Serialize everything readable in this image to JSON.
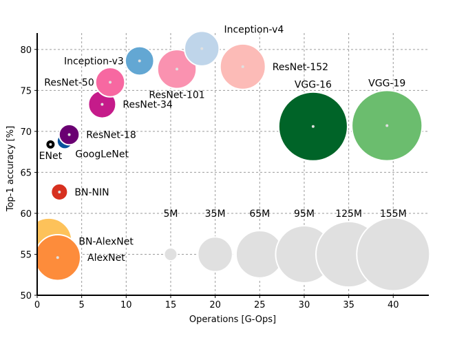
{
  "chart_data": {
    "type": "scatter",
    "subtype": "bubble",
    "title": "",
    "xlabel": "Operations [G-Ops]",
    "ylabel": "Top-1 accuracy [%]",
    "xlim": [
      0,
      44
    ],
    "ylim": [
      50,
      82
    ],
    "xticks": [
      0,
      5,
      10,
      15,
      20,
      25,
      30,
      35,
      40
    ],
    "yticks": [
      50,
      55,
      60,
      65,
      70,
      75,
      80
    ],
    "grid": true,
    "size_encoding": "parameters (millions)",
    "points": [
      {
        "name": "BN-AlexNet",
        "ops": 1.3,
        "accuracy": 56.6,
        "params_m": 62,
        "color": "#fdc25a",
        "label_pos": "right"
      },
      {
        "name": "AlexNet",
        "ops": 2.3,
        "accuracy": 54.6,
        "params_m": 61,
        "color": "#fd8c3b",
        "label_pos": "right"
      },
      {
        "name": "BN-NIN",
        "ops": 2.5,
        "accuracy": 62.6,
        "params_m": 8,
        "color": "#d7301f",
        "label_pos": "right"
      },
      {
        "name": "ENet",
        "ops": 1.5,
        "accuracy": 68.4,
        "params_m": 0.4,
        "color": "#000000",
        "label_pos": "below"
      },
      {
        "name": "GoogLeNet",
        "ops": 3.1,
        "accuracy": 68.8,
        "params_m": 7,
        "color": "#08519c",
        "label_pos": "below-right"
      },
      {
        "name": "ResNet-18",
        "ops": 3.6,
        "accuracy": 69.6,
        "params_m": 12,
        "color": "#6a0072",
        "label_pos": "right"
      },
      {
        "name": "ResNet-34",
        "ops": 7.3,
        "accuracy": 73.3,
        "params_m": 22,
        "color": "#c51b8a",
        "label_pos": "right"
      },
      {
        "name": "ResNet-50",
        "ops": 8.2,
        "accuracy": 76.0,
        "params_m": 25,
        "color": "#f768a1",
        "label_pos": "left"
      },
      {
        "name": "Inception-v3",
        "ops": 11.5,
        "accuracy": 78.6,
        "params_m": 24,
        "color": "#63a7d3",
        "label_pos": "left"
      },
      {
        "name": "ResNet-101",
        "ops": 15.7,
        "accuracy": 77.6,
        "params_m": 44,
        "color": "#fa92b0",
        "label_pos": "below"
      },
      {
        "name": "Inception-v4",
        "ops": 18.5,
        "accuracy": 80.1,
        "params_m": 35,
        "color": "#bfd5ea",
        "label_pos": "above-right"
      },
      {
        "name": "ResNet-152",
        "ops": 23.1,
        "accuracy": 77.9,
        "params_m": 60,
        "color": "#fcbbb7",
        "label_pos": "right"
      },
      {
        "name": "VGG-16",
        "ops": 31.0,
        "accuracy": 70.6,
        "params_m": 138,
        "color": "#006428",
        "label_pos": "above"
      },
      {
        "name": "VGG-19",
        "ops": 39.3,
        "accuracy": 70.7,
        "params_m": 144,
        "color": "#6bbd6e",
        "label_pos": "above"
      }
    ],
    "size_legend": {
      "accuracy": 55,
      "color": "#e0e0e0",
      "items": [
        {
          "label": "5M",
          "ops": 15,
          "params_m": 5
        },
        {
          "label": "35M",
          "ops": 20,
          "params_m": 35
        },
        {
          "label": "65M",
          "ops": 25,
          "params_m": 65
        },
        {
          "label": "95M",
          "ops": 30,
          "params_m": 95
        },
        {
          "label": "125M",
          "ops": 35,
          "params_m": 125
        },
        {
          "label": "155M",
          "ops": 40,
          "params_m": 155
        }
      ],
      "label_accuracy": 60
    }
  }
}
